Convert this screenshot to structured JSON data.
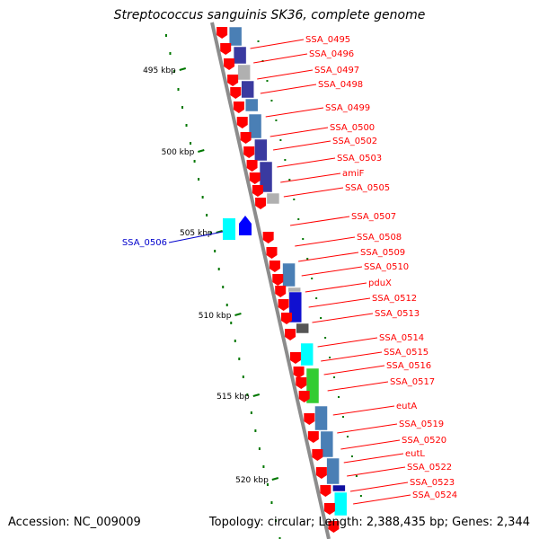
{
  "title": "Streptococcus sanguinis SK36, complete genome",
  "footer": {
    "accession": "Accession: NC_009009",
    "summary": "Topology: circular; Length: 2,388,435 bp; Genes: 2,344"
  },
  "colors": {
    "backbone": "#8c8c8c",
    "gene_forward": "#ff0000",
    "gene_reverse": "#0000ff",
    "label_forward": "#ff0000",
    "label_reverse": "#0000cc",
    "ticks": "#007700",
    "cog_blue": "#4a7fb5",
    "cog_dark": "#3a3aa0",
    "cog_cyan": "#00ffff",
    "cog_green": "#33cc33",
    "cog_gray": "#b0b0b0"
  },
  "scale_labels": [
    "495 kbp",
    "500 kbp",
    "505 kbp",
    "510 kbp",
    "515 kbp",
    "520 kbp"
  ],
  "genes_forward": [
    "SSA_0495",
    "SSA_0496",
    "SSA_0497",
    "SSA_0498",
    "SSA_0499",
    "SSA_0500",
    "SSA_0502",
    "SSA_0503",
    "amiF",
    "SSA_0505",
    "SSA_0507",
    "SSA_0508",
    "SSA_0509",
    "SSA_0510",
    "pduX",
    "SSA_0512",
    "SSA_0513",
    "SSA_0514",
    "SSA_0515",
    "SSA_0516",
    "SSA_0517",
    "eutA",
    "SSA_0519",
    "SSA_0520",
    "eutL",
    "SSA_0522",
    "SSA_0523",
    "SSA_0524"
  ],
  "genes_reverse": [
    "SSA_0506"
  ]
}
